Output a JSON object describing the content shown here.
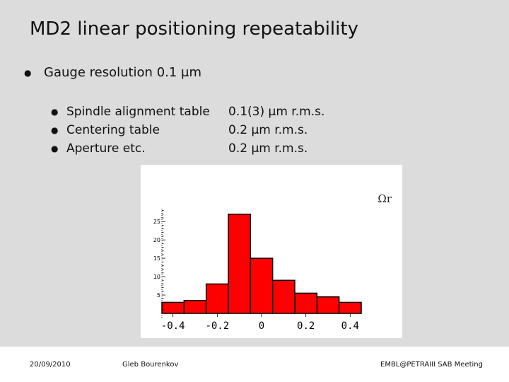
{
  "slide": {
    "title": "MD2 linear positioning repeatability",
    "main_bullet": "Gauge resolution 0.1 μm",
    "sub_bullets": [
      {
        "label": "Spindle alignment table",
        "value": "0.1(3) μm r.m.s."
      },
      {
        "label": "Centering table",
        "value": "0.2 μm r.m.s."
      },
      {
        "label": "Aperture etc.",
        "value": "0.2 μm r.m.s."
      }
    ]
  },
  "chart_data": {
    "type": "bar",
    "title": "",
    "corner_label": "Ωr",
    "xlabel": "",
    "ylabel": "",
    "bin_edges": [
      -0.45,
      -0.35,
      -0.25,
      -0.15,
      -0.05,
      0.05,
      0.15,
      0.25,
      0.35,
      0.45
    ],
    "values": [
      3,
      3.5,
      8,
      27,
      15,
      9,
      5.5,
      4.5,
      3
    ],
    "xlim": [
      -0.45,
      0.45
    ],
    "ylim": [
      0,
      28.5
    ],
    "x_ticks": [
      -0.4,
      -0.2,
      0,
      0.2,
      0.4
    ],
    "x_tick_labels": [
      "-0.4",
      "-0.2",
      "0",
      "0.2",
      "0.4"
    ],
    "y_ticks": [
      5,
      10,
      15,
      20,
      25
    ],
    "y_tick_labels": [
      "5",
      "10",
      "15",
      "20",
      "25"
    ],
    "bar_color": "#ff0000"
  },
  "footer": {
    "date": "20/09/2010",
    "author": "Gleb Bourenkov",
    "event": "EMBL@PETRAIII SAB Meeting"
  }
}
